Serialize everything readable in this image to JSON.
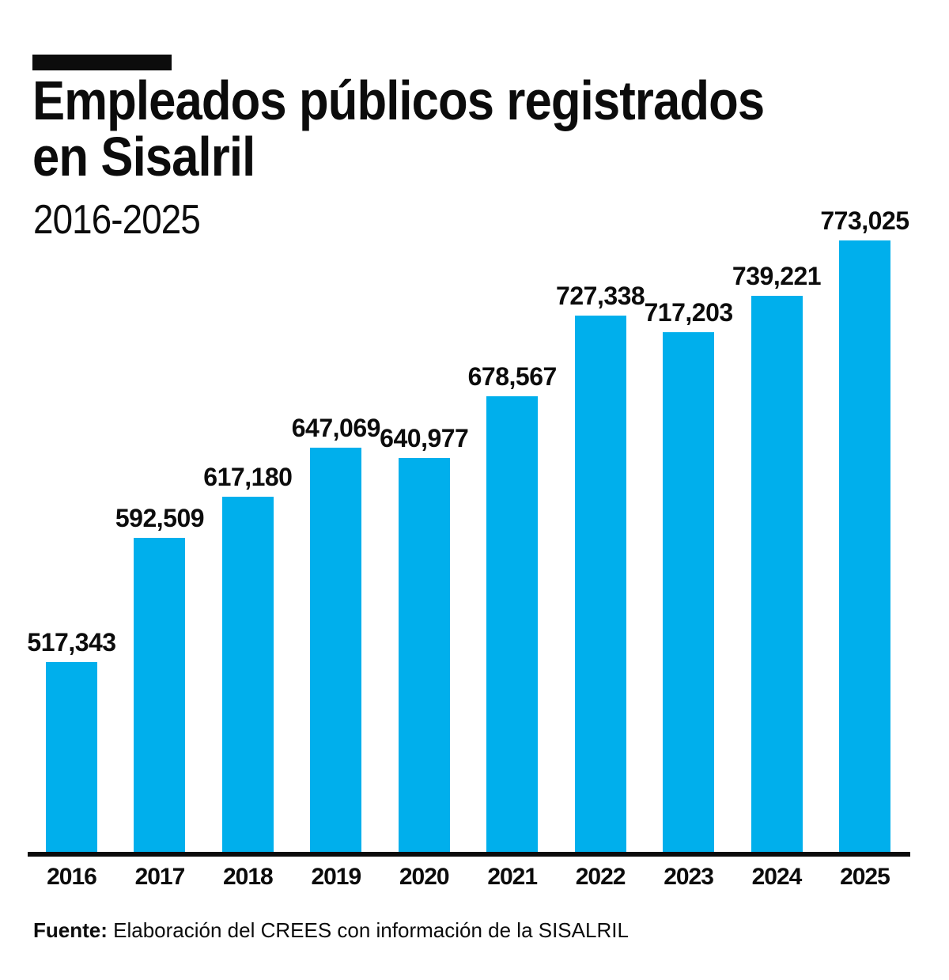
{
  "page": {
    "background": "#ffffff",
    "text_color": "#0c0c0c"
  },
  "header": {
    "kicker_color": "#0c0c0c",
    "title_line1": "Empleados públicos registrados",
    "title_line2": "en Sisalril",
    "subtitle": "2016-2025"
  },
  "chart_data": {
    "type": "bar",
    "title": "Empleados públicos registrados en Sisalril",
    "subtitle": "2016-2025",
    "categories": [
      "2016",
      "2017",
      "2018",
      "2019",
      "2020",
      "2021",
      "2022",
      "2023",
      "2024",
      "2025"
    ],
    "values": [
      517343,
      592509,
      617180,
      647069,
      640977,
      678567,
      727338,
      717203,
      739221,
      773025
    ],
    "value_labels": [
      "517,343",
      "592,509",
      "617,180",
      "647,069",
      "640,977",
      "678,567",
      "727,338",
      "717,203",
      "739,221",
      "773,025"
    ],
    "bar_color": "#00afec",
    "axis_color": "#0c0c0c",
    "ylim": [
      402000,
      773800
    ],
    "grid": false,
    "legend": "none",
    "data_labels": "above-bars",
    "xlabel": "",
    "ylabel": ""
  },
  "footer": {
    "source_label": "Fuente:",
    "source_text": "Elaboración del CREES con información de la SISALRIL"
  }
}
